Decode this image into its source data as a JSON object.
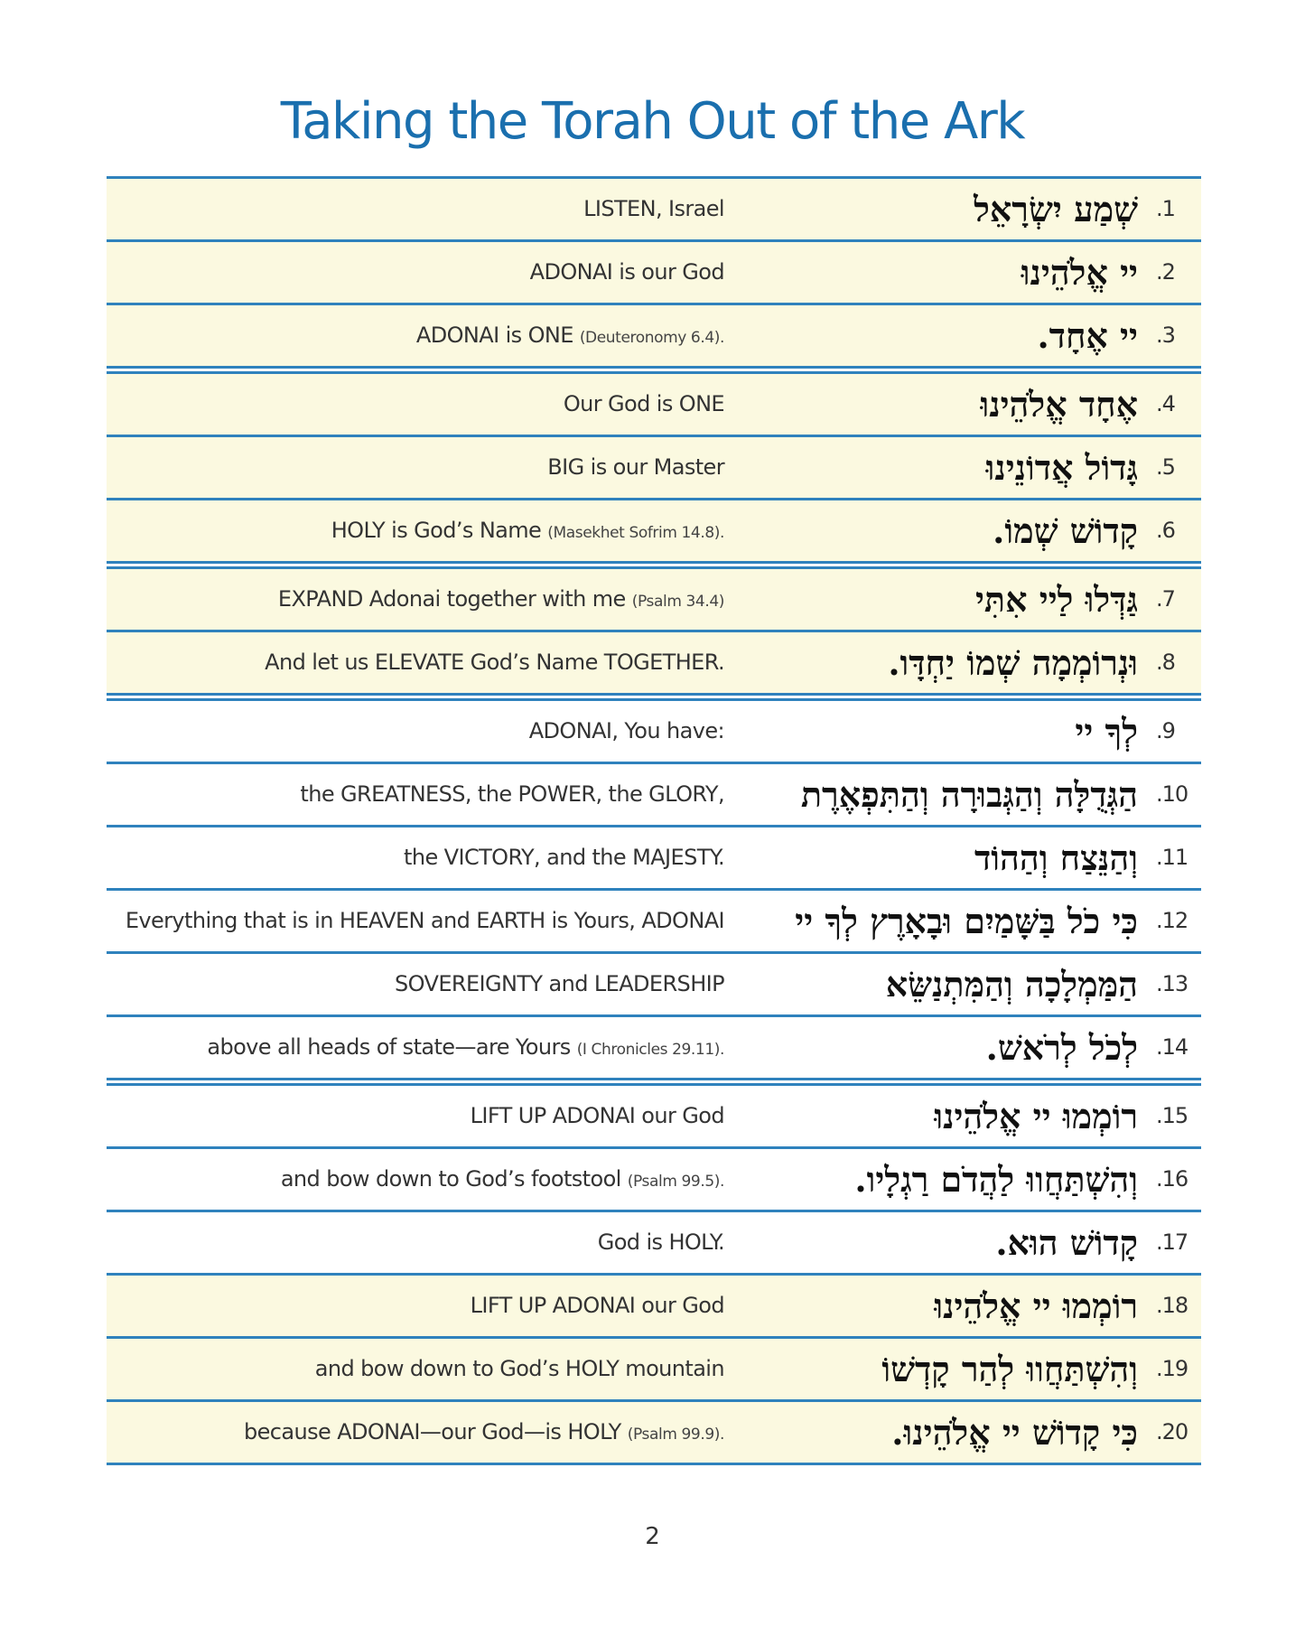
{
  "title": "Taking the Torah Out of the Ark",
  "page_number": "2",
  "rows": [
    {
      "num": ".1",
      "hebrew": "שְׁמַע יִשְׂרָאֵל",
      "english": "LISTEN, Israel",
      "cite": ""
    },
    {
      "num": ".2",
      "hebrew": "יי אֱלֹהֵינוּ",
      "english": "ADONAI is our God",
      "cite": ""
    },
    {
      "num": ".3",
      "hebrew": "יי אֶחָד.",
      "english": "ADONAI is ONE ",
      "cite": "(Deuteronomy 6.4)."
    },
    {
      "num": ".4",
      "hebrew": "אֶחָד אֱלֹהֵינוּ",
      "english": "Our God is ONE",
      "cite": ""
    },
    {
      "num": ".5",
      "hebrew": "גָּדוֹל אֲדוֹנֵינוּ",
      "english": "BIG is our Master",
      "cite": ""
    },
    {
      "num": ".6",
      "hebrew": "קָדוֹשׁ שְׁמוֹ.",
      "english": "HOLY is God’s Name ",
      "cite": "(Masekhet Sofrim 14.8)."
    },
    {
      "num": ".7",
      "hebrew": "גַּדְּלוּ לַיי אִתִּי",
      "english": "EXPAND Adonai together with me ",
      "cite": "(Psalm 34.4)"
    },
    {
      "num": ".8",
      "hebrew": "וּנְרוֹמְמָה שְׁמוֹ יַחְדָּו.",
      "english": "And let us ELEVATE God’s Name TOGETHER.",
      "cite": ""
    },
    {
      "num": ".9",
      "hebrew": "לְךָ יי",
      "english": "ADONAI, You have:",
      "cite": ""
    },
    {
      "num": ".10",
      "hebrew": "הַגְּדֻלָּה וְהַגְּבוּרָה וְהַתִּפְאֶרֶת",
      "english": "the GREATNESS, the POWER, the GLORY,",
      "cite": ""
    },
    {
      "num": ".11",
      "hebrew": "וְהַנֵּצַח וְהַהוֹד",
      "english": "the VICTORY, and the MAJESTY.",
      "cite": ""
    },
    {
      "num": ".12",
      "hebrew": "כִּי כֹל בַּשָּׁמַיִם וּבָאָרֶץ לְךָ יי",
      "english": "Everything that is in HEAVEN and EARTH is Yours, ADONAI",
      "cite": ""
    },
    {
      "num": ".13",
      "hebrew": "הַמַּמְלָכָה וְהַמִּתְנַשֵּׂא",
      "english": "SOVEREIGNTY and LEADERSHIP",
      "cite": ""
    },
    {
      "num": ".14",
      "hebrew": "לְכֹל לְרֹאשׁ.",
      "english": "above all heads of state—are Yours ",
      "cite": "(I Chronicles 29.11)."
    },
    {
      "num": ".15",
      "hebrew": "רוֹמְמוּ יי אֱלֹהֵינוּ",
      "english": "LIFT UP ADONAI our God",
      "cite": ""
    },
    {
      "num": ".16",
      "hebrew": "וְהִשְׁתַּחֲווּ לַהֲדֹם רַגְלָיו.",
      "english": "and bow down to God’s footstool ",
      "cite": "(Psalm 99.5)."
    },
    {
      "num": ".17",
      "hebrew": "קָדוֹשׁ הוּא.",
      "english": "God is HOLY.",
      "cite": ""
    },
    {
      "num": ".18",
      "hebrew": "רוֹמְמוּ יי אֱלֹהֵינוּ",
      "english": "LIFT UP ADONAI our God",
      "cite": ""
    },
    {
      "num": ".19",
      "hebrew": "וְהִשְׁתַּחֲווּ לְהַר קָדְשׁוֹ",
      "english": "and bow down to God’s HOLY mountain",
      "cite": ""
    },
    {
      "num": ".20",
      "hebrew": "כִּי קָדוֹשׁ יי אֱלֹהֵינוּ.",
      "english": "because ADONAI—our God—is HOLY ",
      "cite": "(Psalm 99.9)."
    }
  ]
}
